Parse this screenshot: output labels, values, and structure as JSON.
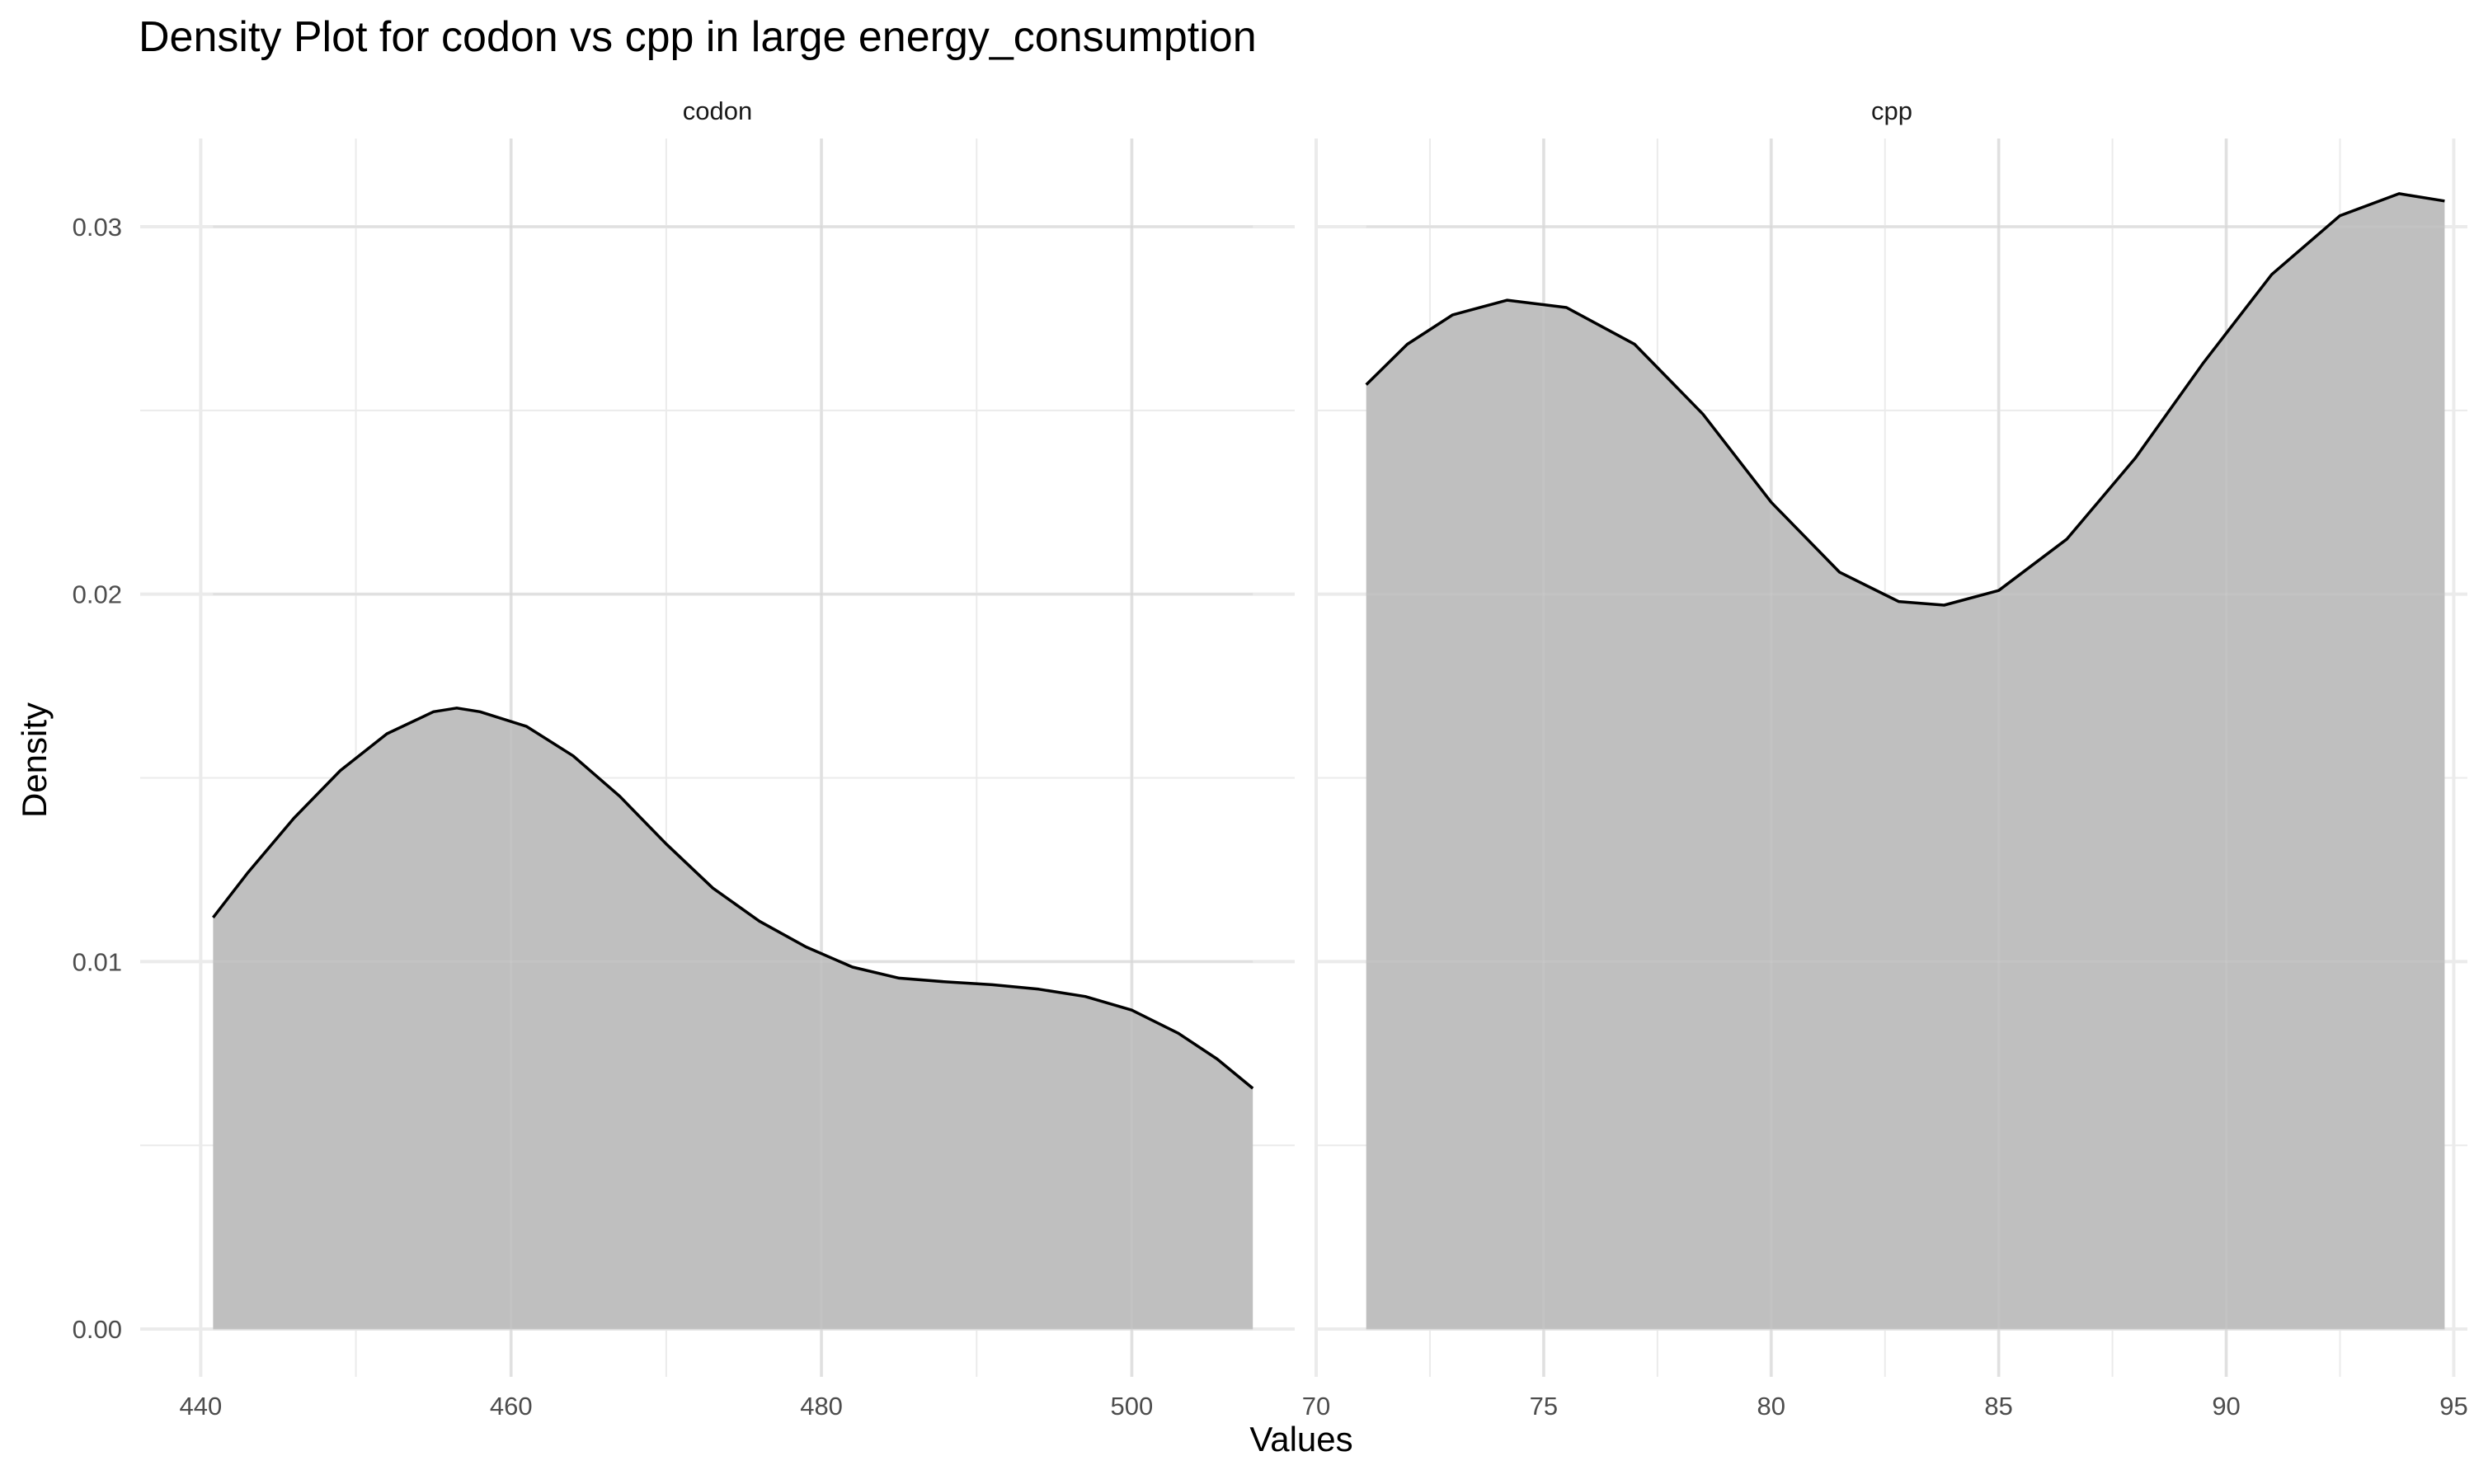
{
  "chart_data": {
    "type": "area",
    "title": "Density Plot for codon vs cpp in large energy_consumption",
    "xlabel": "Values",
    "ylabel": "Density",
    "ylim": [
      -0.0013,
      0.0324
    ],
    "y_ticks": [
      0.0,
      0.01,
      0.02,
      0.03
    ],
    "y_tick_labels": [
      "0.00",
      "0.01",
      "0.02",
      "0.03"
    ],
    "y_minor_ticks": [
      0.005,
      0.015,
      0.025
    ],
    "grid": true,
    "fill_color": "#bebebe",
    "line_color": "#000000",
    "panels": [
      {
        "name": "codon",
        "xlim": [
          436.1,
          510.5
        ],
        "x_ticks": [
          440,
          460,
          480,
          500
        ],
        "x_tick_labels": [
          "440",
          "460",
          "480",
          "500"
        ],
        "x_minor_ticks": [
          450,
          470,
          490
        ],
        "x": [
          440.8,
          443,
          446,
          449,
          452,
          455,
          456.5,
          458,
          461,
          464,
          467,
          470,
          473,
          476,
          479,
          482,
          485,
          488,
          491,
          494,
          497,
          500,
          503,
          505.5,
          507.8
        ],
        "y": [
          0.0112,
          0.0124,
          0.0139,
          0.0152,
          0.0162,
          0.0168,
          0.0169,
          0.0168,
          0.0164,
          0.0156,
          0.0145,
          0.0132,
          0.012,
          0.0111,
          0.0104,
          0.00985,
          0.00955,
          0.00945,
          0.00937,
          0.00925,
          0.00905,
          0.00868,
          0.00805,
          0.00735,
          0.00655
        ]
      },
      {
        "name": "cpp",
        "xlim": [
          70,
          95.3
        ],
        "x_ticks": [
          70,
          75,
          80,
          85,
          90,
          95
        ],
        "x_tick_labels": [
          "70",
          "75",
          "80",
          "85",
          "90",
          "95"
        ],
        "x_minor_ticks": [
          72.5,
          77.5,
          82.5,
          87.5,
          92.5
        ],
        "x": [
          71.1,
          72,
          73,
          74.2,
          75.5,
          77,
          78.5,
          80,
          81.5,
          82.8,
          83.8,
          85,
          86.5,
          88,
          89.5,
          91,
          92.5,
          93.8,
          94.8
        ],
        "y": [
          0.0257,
          0.0268,
          0.0276,
          0.028,
          0.0278,
          0.0268,
          0.0249,
          0.0225,
          0.0206,
          0.0198,
          0.0197,
          0.0201,
          0.0215,
          0.0237,
          0.0263,
          0.0287,
          0.0303,
          0.0309,
          0.0307
        ]
      }
    ]
  }
}
